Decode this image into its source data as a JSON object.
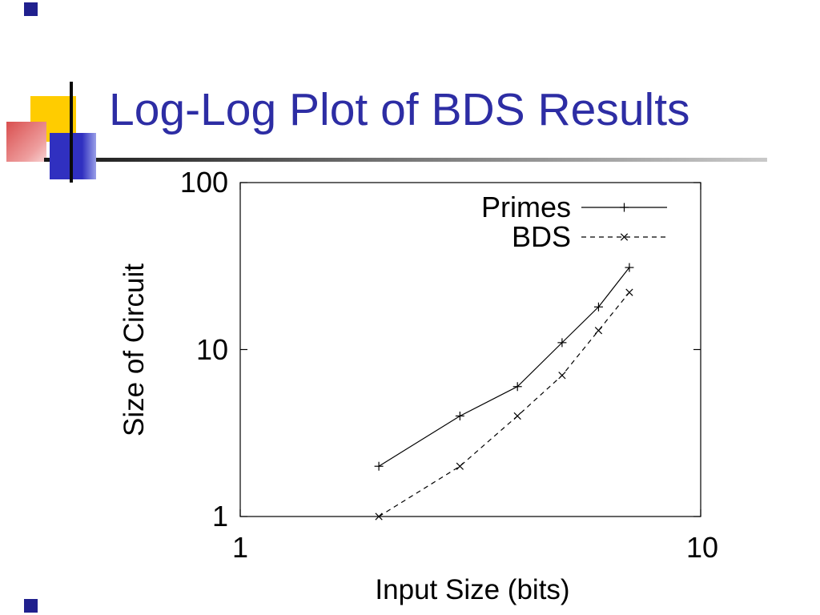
{
  "slide": {
    "title": "Log-Log Plot of BDS Results"
  },
  "colors": {
    "title_text": "#2d2da4",
    "accent_yellow": "#ffcc00",
    "accent_blue": "#3030c0",
    "accent_red": "#d94f4f",
    "accent_navy": "#20208e",
    "plot_stroke": "#000000"
  },
  "chart_data": {
    "type": "line",
    "title": "",
    "xlabel": "Input Size (bits)",
    "ylabel": "Size of Circuit",
    "xscale": "log",
    "yscale": "log",
    "xlim": [
      1,
      10
    ],
    "ylim": [
      1,
      100
    ],
    "xticks": [
      "1",
      "10"
    ],
    "yticks": [
      "1",
      "10",
      "100"
    ],
    "grid": false,
    "legend_position": "top-right-inside",
    "x": [
      2,
      3,
      4,
      5,
      6,
      7
    ],
    "series": [
      {
        "name": "Primes",
        "values": [
          2,
          4,
          6,
          11,
          18,
          31
        ],
        "line": "solid",
        "marker": "plus"
      },
      {
        "name": "BDS",
        "values": [
          1,
          2,
          4,
          7,
          13,
          22
        ],
        "line": "dashed",
        "marker": "x"
      }
    ]
  }
}
